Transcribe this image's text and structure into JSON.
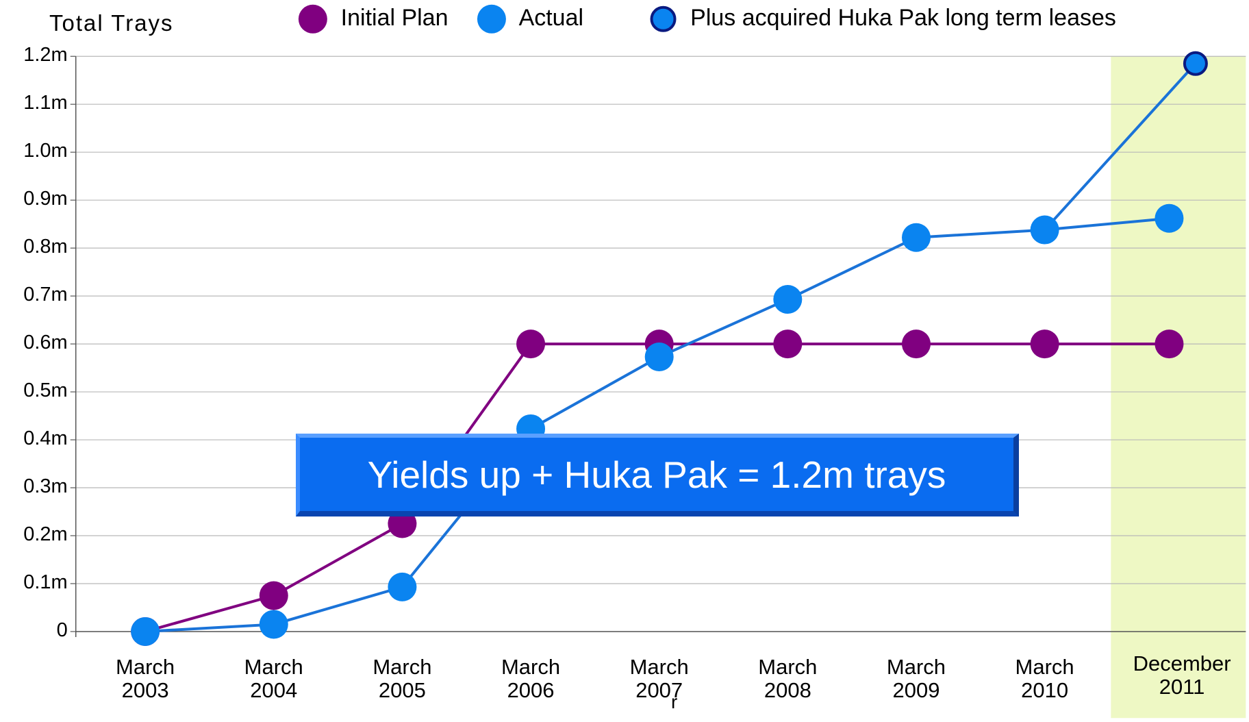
{
  "chart_data": {
    "type": "line",
    "ylabel": "Total Trays",
    "categories": [
      "March 2003",
      "March 2004",
      "March 2005",
      "March 2006",
      "March 2007",
      "March 2008",
      "March 2009",
      "March 2010",
      "December 2011"
    ],
    "series": [
      {
        "name": "Initial Plan",
        "color": "#800080",
        "values": [
          0,
          75000,
          225000,
          600000,
          600000,
          600000,
          600000,
          600000,
          600000
        ]
      },
      {
        "name": "Actual",
        "color": "#0a84f0",
        "line_color": "#1a73d8",
        "values": [
          0,
          15000,
          93000,
          423000,
          573000,
          693000,
          822000,
          838000,
          862000
        ]
      },
      {
        "name": "Plus acquired Huka Pak long term leases",
        "color": "#0a84f0",
        "edgecolor": "#0a1a80",
        "line_color": "#1a73d8",
        "values": [
          null,
          null,
          null,
          null,
          null,
          null,
          null,
          838000,
          1185000
        ]
      }
    ],
    "ylim": [
      0,
      1200000
    ],
    "yticks": [
      0,
      {
        "value": 100000,
        "label": "0.1m"
      },
      {
        "value": 200000,
        "label": "0.2m"
      },
      {
        "value": 300000,
        "label": "0.3m"
      },
      {
        "value": 400000,
        "label": "0.4m"
      },
      {
        "value": 500000,
        "label": "0.5m"
      },
      {
        "value": 600000,
        "label": "0.6m"
      },
      {
        "value": 700000,
        "label": "0.7m"
      },
      {
        "value": 800000,
        "label": "0.8m"
      },
      {
        "value": 900000,
        "label": "0.9m"
      },
      {
        "value": 1000000,
        "label": "1.0m"
      },
      {
        "value": 1100000,
        "label": "1.1m"
      },
      {
        "value": 1200000,
        "label": "1.2m"
      }
    ],
    "grid": true,
    "highlight_color": "#eef8c4",
    "annotation": "Yields up + Huka Pak = 1.2m trays",
    "note": "r"
  }
}
